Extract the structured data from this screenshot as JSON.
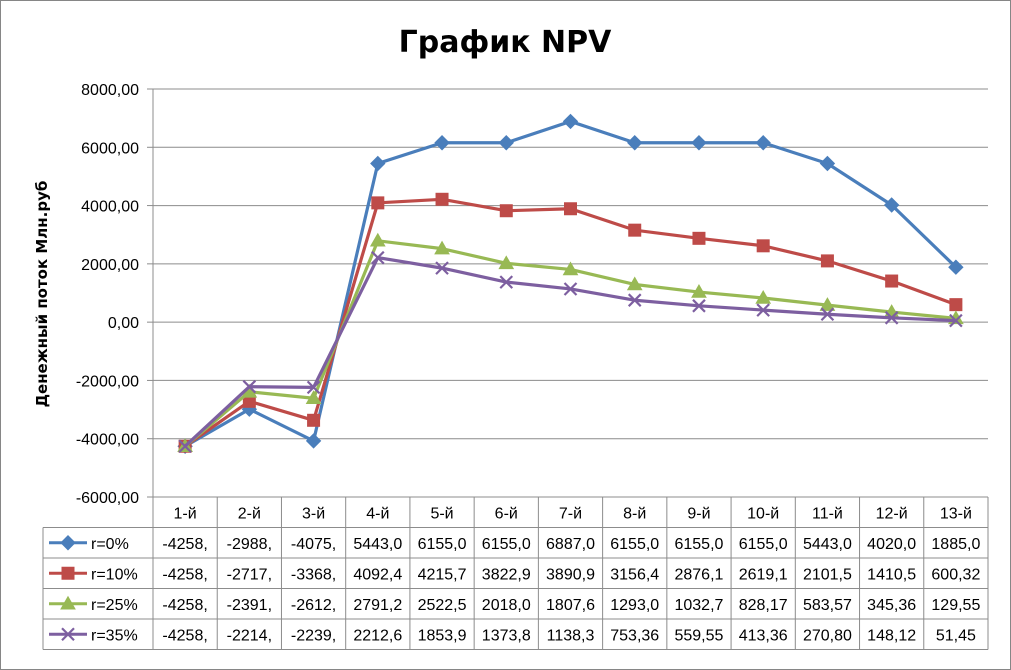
{
  "chart_data": {
    "type": "line",
    "title": "График NPV",
    "xlabel": "",
    "ylabel": "Денежный поток Млн.руб",
    "ylim": [
      -6000,
      8000
    ],
    "yticks": [
      -6000,
      -4000,
      -2000,
      0,
      2000,
      4000,
      6000,
      8000
    ],
    "ytick_labels": [
      "-6000,00",
      "-4000,00",
      "-2000,00",
      "0,00",
      "2000,00",
      "4000,00",
      "6000,00",
      "8000,00"
    ],
    "grid": true,
    "legend": "data-table",
    "categories": [
      "1-й",
      "2-й",
      "3-й",
      "4-й",
      "5-й",
      "6-й",
      "7-й",
      "8-й",
      "9-й",
      "10-й",
      "11-й",
      "12-й",
      "13-й"
    ],
    "series": [
      {
        "name": "r=0%",
        "color": "#4a7ebb",
        "marker": "diamond",
        "values": [
          -4258,
          -2988,
          -4075,
          5443,
          6155,
          6155,
          6887,
          6155,
          6155,
          6155,
          5443,
          4020,
          1885
        ],
        "labels": [
          "-4258,",
          "-2988,",
          "-4075,",
          "5443,0",
          "6155,0",
          "6155,0",
          "6887,0",
          "6155,0",
          "6155,0",
          "6155,0",
          "5443,0",
          "4020,0",
          "1885,0"
        ]
      },
      {
        "name": "r=10%",
        "color": "#be4b48",
        "marker": "square",
        "values": [
          -4258,
          -2717,
          -3368,
          4092.4,
          4215.7,
          3822.9,
          3890.9,
          3156.4,
          2876.1,
          2619.1,
          2101.5,
          1410.5,
          600.32
        ],
        "labels": [
          "-4258,",
          "-2717,",
          "-3368,",
          "4092,4",
          "4215,7",
          "3822,9",
          "3890,9",
          "3156,4",
          "2876,1",
          "2619,1",
          "2101,5",
          "1410,5",
          "600,32"
        ]
      },
      {
        "name": "r=25%",
        "color": "#98b954",
        "marker": "triangle",
        "values": [
          -4258,
          -2391,
          -2612,
          2791.2,
          2522.5,
          2018.0,
          1807.6,
          1293.0,
          1032.7,
          828.17,
          583.57,
          345.36,
          129.55
        ],
        "labels": [
          "-4258,",
          "-2391,",
          "-2612,",
          "2791,2",
          "2522,5",
          "2018,0",
          "1807,6",
          "1293,0",
          "1032,7",
          "828,17",
          "583,57",
          "345,36",
          "129,55"
        ]
      },
      {
        "name": "r=35%",
        "color": "#7d5fa0",
        "marker": "x",
        "values": [
          -4258,
          -2214,
          -2239,
          2212.6,
          1853.9,
          1373.8,
          1138.3,
          753.36,
          559.55,
          413.36,
          270.8,
          148.12,
          51.45
        ],
        "labels": [
          "-4258,",
          "-2214,",
          "-2239,",
          "2212,6",
          "1853,9",
          "1373,8",
          "1138,3",
          "753,36",
          "559,55",
          "413,36",
          "270,80",
          "148,12",
          "51,45"
        ]
      }
    ]
  }
}
